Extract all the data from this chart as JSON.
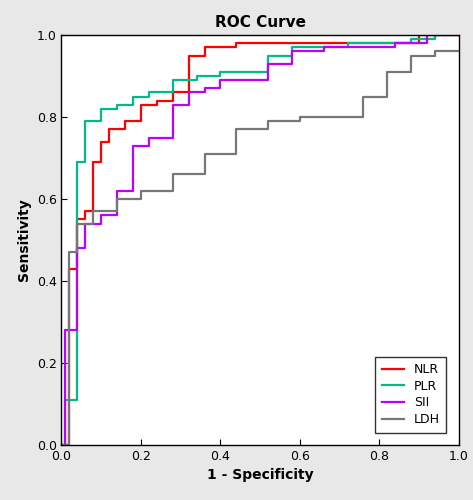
{
  "title": "ROC Curve",
  "xlabel": "1 - Specificity",
  "ylabel": "Sensitivity",
  "xlim": [
    0.0,
    1.0
  ],
  "ylim": [
    0.0,
    1.0
  ],
  "xticks": [
    0.0,
    0.2,
    0.4,
    0.6,
    0.8,
    1.0
  ],
  "yticks": [
    0.0,
    0.2,
    0.4,
    0.6,
    0.8,
    1.0
  ],
  "curves": {
    "NLR": {
      "color": "#ff0000",
      "x": [
        0.0,
        0.02,
        0.02,
        0.04,
        0.04,
        0.06,
        0.06,
        0.08,
        0.08,
        0.1,
        0.1,
        0.12,
        0.12,
        0.16,
        0.16,
        0.2,
        0.2,
        0.24,
        0.24,
        0.28,
        0.28,
        0.32,
        0.32,
        0.36,
        0.36,
        0.4,
        0.4,
        0.44,
        0.44,
        0.5,
        0.5,
        0.56,
        0.56,
        0.62,
        0.62,
        0.7,
        0.7,
        0.8,
        0.8,
        0.9,
        0.9,
        1.0
      ],
      "y": [
        0.0,
        0.0,
        0.43,
        0.43,
        0.55,
        0.55,
        0.57,
        0.57,
        0.69,
        0.69,
        0.74,
        0.74,
        0.77,
        0.77,
        0.79,
        0.79,
        0.83,
        0.83,
        0.84,
        0.84,
        0.86,
        0.86,
        0.95,
        0.95,
        0.97,
        0.97,
        0.97,
        0.97,
        0.98,
        0.98,
        0.98,
        0.98,
        0.98,
        0.98,
        0.98,
        0.98,
        0.98,
        0.98,
        0.98,
        0.98,
        1.0,
        1.0
      ]
    },
    "PLR": {
      "color": "#00bb88",
      "x": [
        0.0,
        0.01,
        0.01,
        0.04,
        0.04,
        0.06,
        0.06,
        0.1,
        0.1,
        0.14,
        0.14,
        0.18,
        0.18,
        0.22,
        0.22,
        0.28,
        0.28,
        0.34,
        0.34,
        0.4,
        0.4,
        0.46,
        0.46,
        0.52,
        0.52,
        0.58,
        0.58,
        0.64,
        0.64,
        0.72,
        0.72,
        0.8,
        0.8,
        0.88,
        0.88,
        0.94,
        0.94,
        1.0
      ],
      "y": [
        0.0,
        0.0,
        0.11,
        0.11,
        0.69,
        0.69,
        0.79,
        0.79,
        0.82,
        0.82,
        0.83,
        0.83,
        0.85,
        0.85,
        0.86,
        0.86,
        0.89,
        0.89,
        0.9,
        0.9,
        0.91,
        0.91,
        0.91,
        0.91,
        0.95,
        0.95,
        0.97,
        0.97,
        0.97,
        0.97,
        0.98,
        0.98,
        0.98,
        0.98,
        0.99,
        0.99,
        1.0,
        1.0
      ]
    },
    "SII": {
      "color": "#bb00ff",
      "x": [
        0.0,
        0.01,
        0.01,
        0.04,
        0.04,
        0.06,
        0.06,
        0.1,
        0.1,
        0.14,
        0.14,
        0.18,
        0.18,
        0.22,
        0.22,
        0.28,
        0.28,
        0.32,
        0.32,
        0.36,
        0.36,
        0.4,
        0.4,
        0.46,
        0.46,
        0.52,
        0.52,
        0.58,
        0.58,
        0.66,
        0.66,
        0.74,
        0.74,
        0.84,
        0.84,
        0.92,
        0.92,
        1.0
      ],
      "y": [
        0.0,
        0.0,
        0.28,
        0.28,
        0.48,
        0.48,
        0.54,
        0.54,
        0.56,
        0.56,
        0.62,
        0.62,
        0.73,
        0.73,
        0.75,
        0.75,
        0.83,
        0.83,
        0.86,
        0.86,
        0.87,
        0.87,
        0.89,
        0.89,
        0.89,
        0.89,
        0.93,
        0.93,
        0.96,
        0.96,
        0.97,
        0.97,
        0.97,
        0.97,
        0.98,
        0.98,
        1.0,
        1.0
      ]
    },
    "LDH": {
      "color": "#777777",
      "x": [
        0.0,
        0.02,
        0.02,
        0.04,
        0.04,
        0.08,
        0.08,
        0.14,
        0.14,
        0.2,
        0.2,
        0.28,
        0.28,
        0.36,
        0.36,
        0.44,
        0.44,
        0.52,
        0.52,
        0.6,
        0.6,
        0.68,
        0.68,
        0.76,
        0.76,
        0.82,
        0.82,
        0.88,
        0.88,
        0.94,
        0.94,
        1.0
      ],
      "y": [
        0.0,
        0.0,
        0.47,
        0.47,
        0.54,
        0.54,
        0.57,
        0.57,
        0.6,
        0.6,
        0.62,
        0.62,
        0.66,
        0.66,
        0.71,
        0.71,
        0.77,
        0.77,
        0.79,
        0.79,
        0.8,
        0.8,
        0.8,
        0.8,
        0.85,
        0.85,
        0.91,
        0.91,
        0.95,
        0.95,
        0.96,
        0.96
      ]
    }
  },
  "legend_labels": [
    "NLR",
    "PLR",
    "SII",
    "LDH"
  ],
  "legend_colors": [
    "#ff0000",
    "#00bb88",
    "#bb00ff",
    "#777777"
  ],
  "linewidth": 1.6,
  "title_fontsize": 11,
  "label_fontsize": 10,
  "tick_fontsize": 9,
  "legend_fontsize": 9,
  "bg_color": "#e8e8e8",
  "plot_bg_color": "#ffffff"
}
